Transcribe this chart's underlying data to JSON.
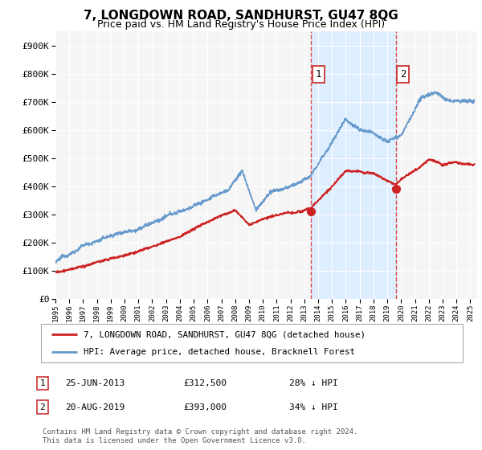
{
  "title": "7, LONGDOWN ROAD, SANDHURST, GU47 8QG",
  "subtitle": "Price paid vs. HM Land Registry's House Price Index (HPI)",
  "ylabel_ticks": [
    "£0",
    "£100K",
    "£200K",
    "£300K",
    "£400K",
    "£500K",
    "£600K",
    "£700K",
    "£800K",
    "£900K"
  ],
  "ytick_vals": [
    0,
    100000,
    200000,
    300000,
    400000,
    500000,
    600000,
    700000,
    800000,
    900000
  ],
  "ylim": [
    0,
    950000
  ],
  "xlim_start": 1995.0,
  "xlim_end": 2025.5,
  "sale1_date": 2013.49,
  "sale1_price": 312500,
  "sale1_label": "1",
  "sale2_date": 2019.63,
  "sale2_price": 393000,
  "sale2_label": "2",
  "background_color": "#ffffff",
  "plot_bg_color": "#f5f5f5",
  "shade_color": "#ddeeff",
  "hpi_color": "#6699cc",
  "price_color": "#cc2222",
  "legend_label_price": "7, LONGDOWN ROAD, SANDHURST, GU47 8QG (detached house)",
  "legend_label_hpi": "HPI: Average price, detached house, Bracknell Forest",
  "table_row1": [
    "1",
    "25-JUN-2013",
    "£312,500",
    "28% ↓ HPI"
  ],
  "table_row2": [
    "2",
    "20-AUG-2019",
    "£393,000",
    "34% ↓ HPI"
  ],
  "footer": "Contains HM Land Registry data © Crown copyright and database right 2024.\nThis data is licensed under the Open Government Licence v3.0.",
  "title_fontsize": 11,
  "subtitle_fontsize": 9,
  "tick_fontsize": 8
}
